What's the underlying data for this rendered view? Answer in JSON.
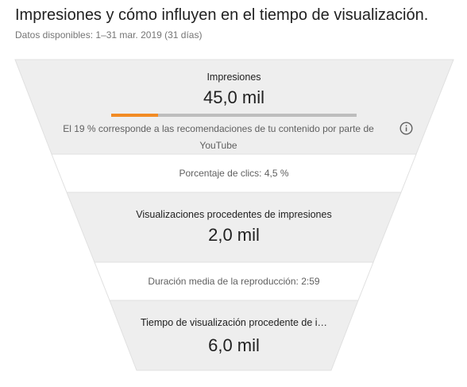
{
  "header": {
    "title": "Impresiones y cómo influyen en el tiempo de visualización.",
    "date_range": "Datos disponibles: 1–31 mar. 2019 (31 días)"
  },
  "funnel": {
    "impressions": {
      "label": "Impresiones",
      "value": "45,0 mil",
      "recommendation_share": 0.19,
      "note": "El 19 % corresponde a las recomendaciones de tu contenido por parte de YouTube",
      "info_icon": "info-icon"
    },
    "ctr": {
      "label": "Porcentaje de clics: 4,5 %"
    },
    "views_from_impressions": {
      "label": "Visualizaciones procedentes de impresiones",
      "value": "2,0 mil"
    },
    "avg_view_duration": {
      "label": "Duración media de la reproducción: 2:59"
    },
    "watch_time": {
      "label": "Tiempo de visualización procedente de i…",
      "value": "6,0 mil"
    }
  },
  "colors": {
    "band_dark": "#eeeeee",
    "band_light": "#ffffff",
    "accent": "#f28b24",
    "track": "#bdbdbd"
  }
}
